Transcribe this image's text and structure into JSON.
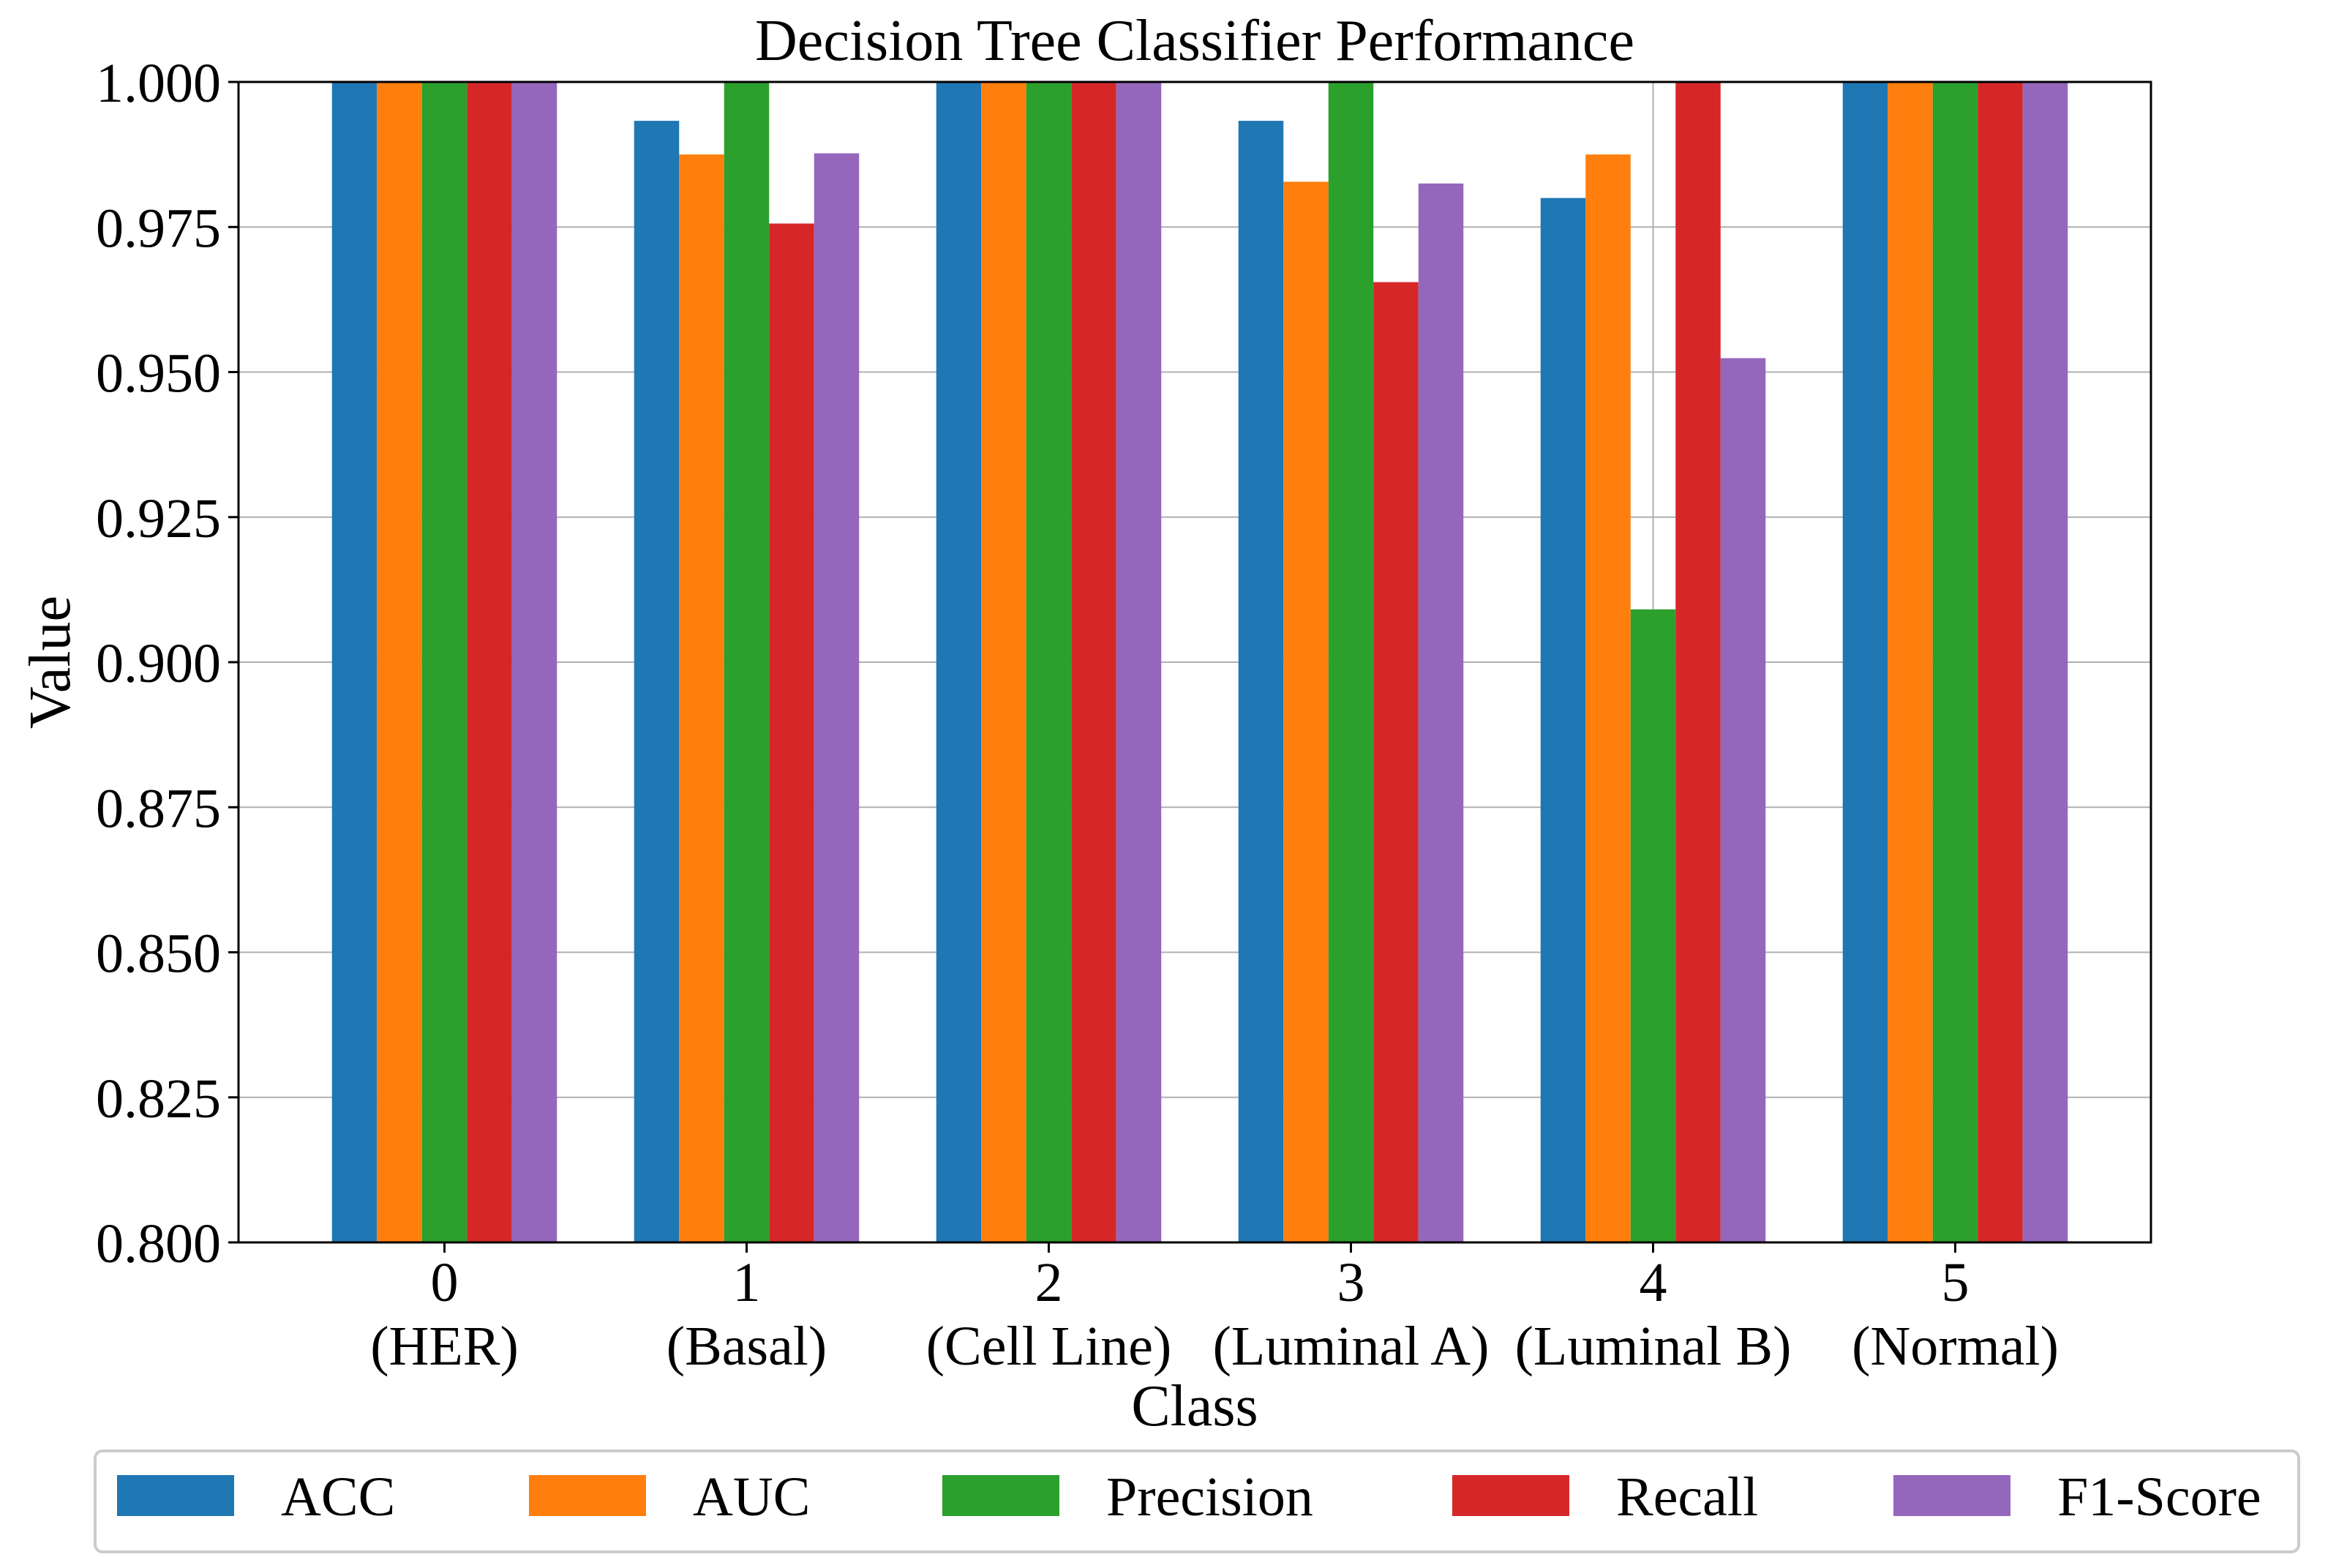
{
  "chart_data": {
    "type": "bar",
    "title": "Decision Tree Classifier Performance",
    "xlabel": "Class",
    "ylabel": "Value",
    "ylim": [
      0.8,
      1.0
    ],
    "yticks": [
      "0.800",
      "0.825",
      "0.850",
      "0.875",
      "0.900",
      "0.925",
      "0.950",
      "0.975",
      "1.000"
    ],
    "grid": true,
    "legend_position": "bottom",
    "categories": [
      {
        "id": "0",
        "name": "(HER)"
      },
      {
        "id": "1",
        "name": "(Basal)"
      },
      {
        "id": "2",
        "name": "(Cell Line)"
      },
      {
        "id": "3",
        "name": "(Luminal A)"
      },
      {
        "id": "4",
        "name": "(Luminal B)"
      },
      {
        "id": "5",
        "name": "(Normal)"
      }
    ],
    "series": [
      {
        "name": "ACC",
        "color": "#1f77b4",
        "values": [
          1.0,
          0.9933,
          1.0,
          0.9933,
          0.98,
          1.0
        ]
      },
      {
        "name": "AUC",
        "color": "#ff7f0e",
        "values": [
          1.0,
          0.9875,
          1.0,
          0.9828,
          0.9875,
          1.0
        ]
      },
      {
        "name": "Precision",
        "color": "#2ca02c",
        "values": [
          1.0,
          1.0,
          1.0,
          1.0,
          0.9091,
          1.0
        ]
      },
      {
        "name": "Recall",
        "color": "#d62728",
        "values": [
          1.0,
          0.9756,
          1.0,
          0.9655,
          1.0,
          1.0
        ]
      },
      {
        "name": "F1-Score",
        "color": "#9467bd",
        "values": [
          1.0,
          0.9877,
          1.0,
          0.9825,
          0.9524,
          1.0
        ]
      }
    ]
  }
}
